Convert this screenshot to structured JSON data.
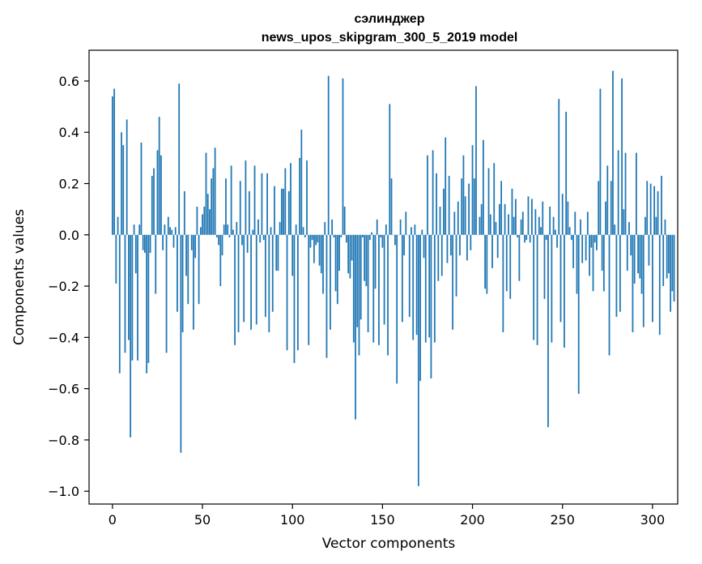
{
  "chart_data": {
    "type": "bar",
    "title": "сэлинджер",
    "subtitle": "news_upos_skipgram_300_5_2019 model",
    "xlabel": "Vector components",
    "ylabel": "Components values",
    "xlim": [
      -13,
      314
    ],
    "ylim": [
      -1.05,
      0.72
    ],
    "xticks": [
      0,
      50,
      100,
      150,
      200,
      250,
      300
    ],
    "xtick_labels": [
      "0",
      "50",
      "100",
      "150",
      "200",
      "250",
      "300"
    ],
    "yticks": [
      -1.0,
      -0.8,
      -0.6,
      -0.4,
      -0.2,
      0.0,
      0.2,
      0.4,
      0.6
    ],
    "ytick_labels": [
      "−1.0",
      "−0.8",
      "−0.6",
      "−0.4",
      "−0.2",
      "0.0",
      "0.2",
      "0.4",
      "0.6"
    ],
    "bar_color": "#1f77b4",
    "grid": false,
    "values": [
      0.54,
      0.57,
      -0.19,
      0.07,
      -0.54,
      0.4,
      0.35,
      -0.46,
      0.45,
      -0.41,
      -0.79,
      -0.49,
      0.04,
      -0.15,
      -0.49,
      0.04,
      0.36,
      -0.06,
      -0.07,
      -0.54,
      -0.5,
      -0.07,
      0.23,
      0.26,
      -0.23,
      0.33,
      0.46,
      0.31,
      -0.06,
      0.04,
      -0.46,
      0.07,
      0.03,
      0.02,
      -0.05,
      0.03,
      -0.3,
      0.59,
      -0.85,
      -0.38,
      0.17,
      -0.16,
      -0.27,
      0.0,
      -0.06,
      -0.37,
      -0.09,
      0.11,
      -0.27,
      0.03,
      0.08,
      0.11,
      0.32,
      0.16,
      0.1,
      0.22,
      0.26,
      0.34,
      -0.01,
      -0.04,
      -0.2,
      -0.08,
      0.04,
      0.22,
      0.04,
      -0.01,
      0.27,
      0.02,
      -0.43,
      0.05,
      -0.38,
      0.21,
      -0.04,
      -0.34,
      0.29,
      -0.07,
      0.17,
      -0.37,
      0.02,
      0.27,
      -0.35,
      0.06,
      -0.03,
      0.24,
      -0.02,
      -0.32,
      0.24,
      -0.38,
      0.03,
      -0.3,
      0.19,
      -0.14,
      -0.14,
      0.05,
      0.18,
      0.18,
      0.26,
      -0.45,
      0.17,
      0.28,
      -0.16,
      -0.5,
      0.04,
      -0.45,
      0.3,
      0.41,
      0.03,
      -0.01,
      0.29,
      -0.43,
      -0.05,
      -0.02,
      -0.11,
      -0.04,
      -0.03,
      -0.12,
      -0.15,
      -0.23,
      0.05,
      -0.48,
      0.62,
      -0.37,
      0.06,
      -0.01,
      -0.22,
      -0.27,
      -0.14,
      -0.01,
      0.61,
      0.11,
      -0.03,
      -0.15,
      -0.17,
      -0.1,
      -0.42,
      -0.72,
      -0.36,
      -0.47,
      -0.33,
      -0.01,
      -0.18,
      -0.2,
      -0.38,
      -0.02,
      0.01,
      -0.42,
      -0.21,
      0.06,
      -0.43,
      -0.01,
      -0.05,
      -0.35,
      0.04,
      -0.47,
      0.51,
      0.22,
      0.0,
      -0.04,
      -0.58,
      0.0,
      0.06,
      -0.34,
      -0.08,
      0.09,
      0.0,
      -0.32,
      0.03,
      -0.41,
      0.04,
      -0.39,
      -0.98,
      -0.57,
      0.02,
      -0.09,
      -0.42,
      0.31,
      -0.4,
      -0.56,
      0.33,
      -0.42,
      0.24,
      -0.18,
      0.11,
      -0.16,
      0.18,
      0.38,
      -0.11,
      0.23,
      -0.08,
      -0.37,
      0.09,
      -0.24,
      0.13,
      -0.08,
      0.22,
      0.31,
      0.15,
      -0.1,
      0.2,
      -0.06,
      0.35,
      0.22,
      0.58,
      0.0,
      0.07,
      0.12,
      0.37,
      -0.21,
      -0.23,
      0.26,
      0.08,
      -0.13,
      0.28,
      0.05,
      -0.09,
      0.12,
      0.21,
      -0.38,
      0.12,
      -0.22,
      0.08,
      -0.25,
      0.18,
      0.07,
      0.14,
      -0.01,
      -0.18,
      0.06,
      0.09,
      -0.03,
      -0.02,
      0.15,
      -0.03,
      0.14,
      -0.41,
      0.1,
      -0.43,
      0.07,
      0.03,
      0.13,
      -0.25,
      -0.02,
      -0.75,
      0.11,
      -0.42,
      0.07,
      0.02,
      -0.05,
      0.53,
      -0.34,
      0.16,
      -0.44,
      0.48,
      0.13,
      0.03,
      -0.02,
      -0.13,
      0.09,
      -0.23,
      -0.62,
      0.06,
      -0.11,
      0.0,
      -0.1,
      0.09,
      -0.16,
      -0.05,
      -0.22,
      -0.03,
      -0.06,
      0.21,
      0.57,
      -0.14,
      -0.22,
      0.13,
      0.27,
      -0.47,
      0.21,
      0.64,
      0.04,
      -0.32,
      0.33,
      -0.3,
      0.61,
      0.1,
      0.32,
      -0.14,
      0.05,
      -0.08,
      -0.38,
      -0.19,
      0.32,
      -0.15,
      -0.17,
      -0.23,
      -0.36,
      0.07,
      0.21,
      -0.12,
      0.2,
      -0.34,
      0.19,
      0.07,
      0.17,
      -0.39,
      0.23,
      -0.2,
      0.06,
      -0.17,
      -0.15,
      -0.3,
      -0.22,
      -0.26
    ]
  }
}
